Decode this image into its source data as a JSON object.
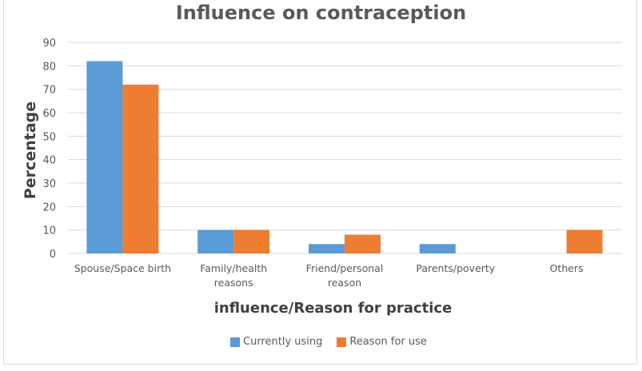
{
  "chart_data": {
    "type": "bar",
    "title": "Influence on contraception",
    "xlabel": "influence/Reason for practice",
    "ylabel": "Percentage",
    "ylim": [
      0,
      90
    ],
    "yticks": [
      0,
      10,
      20,
      30,
      40,
      50,
      60,
      70,
      80,
      90
    ],
    "grid": true,
    "legend_position": "bottom",
    "categories": [
      [
        "Spouse/Space birth"
      ],
      [
        "Family/health",
        "reasons"
      ],
      [
        "Friend/personal",
        "reason"
      ],
      [
        "Parents/poverty"
      ],
      [
        "Others"
      ]
    ],
    "series": [
      {
        "name": "Currently using",
        "color": "#5B9BD5",
        "values": [
          82,
          10,
          4,
          4,
          0
        ]
      },
      {
        "name": "Reason for use",
        "color": "#ED7D31",
        "values": [
          72,
          10,
          8,
          0,
          10
        ]
      }
    ]
  }
}
